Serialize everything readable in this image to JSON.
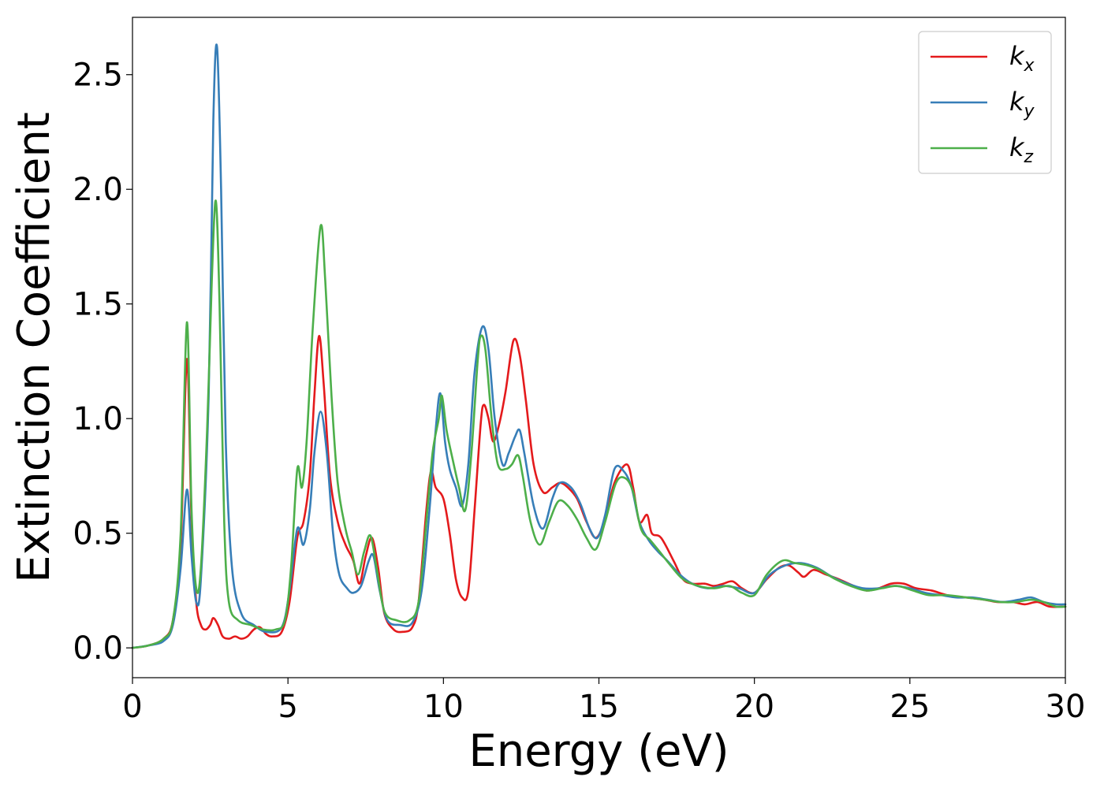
{
  "chart_data": {
    "type": "line",
    "xlabel": "Energy (eV)",
    "ylabel": "Extinction Coefficient",
    "xlim": [
      0,
      30
    ],
    "ylim": [
      -0.13,
      2.75
    ],
    "xticks": [
      0,
      5,
      10,
      15,
      20,
      25,
      30
    ],
    "xtick_labels": [
      "0",
      "5",
      "10",
      "15",
      "20",
      "25",
      "30"
    ],
    "yticks": [
      0.0,
      0.5,
      1.0,
      1.5,
      2.0,
      2.5
    ],
    "ytick_labels": [
      "0.0",
      "0.5",
      "1.0",
      "1.5",
      "2.0",
      "2.5"
    ],
    "grid": false,
    "legend_position": "top-right",
    "series": [
      {
        "name": "k_x",
        "label_main": "k",
        "label_sub": "x",
        "color": "#e41a1c",
        "points": [
          [
            0,
            0
          ],
          [
            0.5,
            0.01
          ],
          [
            1.0,
            0.04
          ],
          [
            1.3,
            0.12
          ],
          [
            1.55,
            0.45
          ],
          [
            1.75,
            1.26
          ],
          [
            1.9,
            0.55
          ],
          [
            2.05,
            0.2
          ],
          [
            2.2,
            0.1
          ],
          [
            2.35,
            0.08
          ],
          [
            2.5,
            0.1
          ],
          [
            2.6,
            0.13
          ],
          [
            2.75,
            0.1
          ],
          [
            2.9,
            0.05
          ],
          [
            3.1,
            0.04
          ],
          [
            3.3,
            0.05
          ],
          [
            3.5,
            0.04
          ],
          [
            3.7,
            0.05
          ],
          [
            3.9,
            0.08
          ],
          [
            4.1,
            0.09
          ],
          [
            4.3,
            0.06
          ],
          [
            4.5,
            0.05
          ],
          [
            4.8,
            0.07
          ],
          [
            5.05,
            0.2
          ],
          [
            5.3,
            0.48
          ],
          [
            5.5,
            0.55
          ],
          [
            5.7,
            0.75
          ],
          [
            5.85,
            1.1
          ],
          [
            6.0,
            1.36
          ],
          [
            6.15,
            1.15
          ],
          [
            6.35,
            0.75
          ],
          [
            6.6,
            0.55
          ],
          [
            6.85,
            0.45
          ],
          [
            7.1,
            0.38
          ],
          [
            7.3,
            0.28
          ],
          [
            7.5,
            0.4
          ],
          [
            7.7,
            0.48
          ],
          [
            7.9,
            0.35
          ],
          [
            8.1,
            0.15
          ],
          [
            8.4,
            0.08
          ],
          [
            8.7,
            0.07
          ],
          [
            9.0,
            0.09
          ],
          [
            9.2,
            0.2
          ],
          [
            9.45,
            0.6
          ],
          [
            9.6,
            0.77
          ],
          [
            9.75,
            0.7
          ],
          [
            10.0,
            0.65
          ],
          [
            10.2,
            0.5
          ],
          [
            10.4,
            0.3
          ],
          [
            10.6,
            0.22
          ],
          [
            10.8,
            0.25
          ],
          [
            11.0,
            0.6
          ],
          [
            11.2,
            0.98
          ],
          [
            11.3,
            1.06
          ],
          [
            11.45,
            1.0
          ],
          [
            11.6,
            0.9
          ],
          [
            11.8,
            0.98
          ],
          [
            12.0,
            1.12
          ],
          [
            12.25,
            1.34
          ],
          [
            12.45,
            1.28
          ],
          [
            12.65,
            1.08
          ],
          [
            12.9,
            0.8
          ],
          [
            13.2,
            0.68
          ],
          [
            13.5,
            0.7
          ],
          [
            13.75,
            0.72
          ],
          [
            14.0,
            0.7
          ],
          [
            14.3,
            0.65
          ],
          [
            14.6,
            0.55
          ],
          [
            14.9,
            0.48
          ],
          [
            15.2,
            0.56
          ],
          [
            15.5,
            0.72
          ],
          [
            15.9,
            0.8
          ],
          [
            16.1,
            0.7
          ],
          [
            16.3,
            0.55
          ],
          [
            16.55,
            0.58
          ],
          [
            16.7,
            0.5
          ],
          [
            17.0,
            0.48
          ],
          [
            17.4,
            0.38
          ],
          [
            17.7,
            0.3
          ],
          [
            18.0,
            0.28
          ],
          [
            18.4,
            0.28
          ],
          [
            18.7,
            0.27
          ],
          [
            19.0,
            0.28
          ],
          [
            19.3,
            0.29
          ],
          [
            19.6,
            0.26
          ],
          [
            20.0,
            0.24
          ],
          [
            20.4,
            0.3
          ],
          [
            20.8,
            0.35
          ],
          [
            21.1,
            0.36
          ],
          [
            21.4,
            0.33
          ],
          [
            21.6,
            0.31
          ],
          [
            21.9,
            0.34
          ],
          [
            22.3,
            0.32
          ],
          [
            22.7,
            0.3
          ],
          [
            23.2,
            0.27
          ],
          [
            23.6,
            0.25
          ],
          [
            24.0,
            0.26
          ],
          [
            24.4,
            0.28
          ],
          [
            24.8,
            0.28
          ],
          [
            25.2,
            0.26
          ],
          [
            25.7,
            0.25
          ],
          [
            26.2,
            0.23
          ],
          [
            26.8,
            0.22
          ],
          [
            27.4,
            0.21
          ],
          [
            27.8,
            0.2
          ],
          [
            28.3,
            0.2
          ],
          [
            28.7,
            0.19
          ],
          [
            29.1,
            0.2
          ],
          [
            29.5,
            0.18
          ],
          [
            30.0,
            0.18
          ]
        ]
      },
      {
        "name": "k_y",
        "label_main": "k",
        "label_sub": "y",
        "color": "#377eb8",
        "points": [
          [
            0,
            0
          ],
          [
            0.5,
            0.01
          ],
          [
            1.0,
            0.03
          ],
          [
            1.3,
            0.1
          ],
          [
            1.55,
            0.35
          ],
          [
            1.75,
            0.69
          ],
          [
            1.9,
            0.4
          ],
          [
            2.05,
            0.2
          ],
          [
            2.2,
            0.3
          ],
          [
            2.45,
            1.1
          ],
          [
            2.6,
            2.3
          ],
          [
            2.72,
            2.62
          ],
          [
            2.85,
            2.0
          ],
          [
            3.0,
            0.9
          ],
          [
            3.2,
            0.35
          ],
          [
            3.5,
            0.15
          ],
          [
            3.9,
            0.1
          ],
          [
            4.3,
            0.07
          ],
          [
            4.8,
            0.09
          ],
          [
            5.05,
            0.25
          ],
          [
            5.3,
            0.52
          ],
          [
            5.5,
            0.45
          ],
          [
            5.7,
            0.6
          ],
          [
            5.85,
            0.85
          ],
          [
            6.05,
            1.03
          ],
          [
            6.25,
            0.85
          ],
          [
            6.45,
            0.5
          ],
          [
            6.65,
            0.32
          ],
          [
            6.9,
            0.26
          ],
          [
            7.1,
            0.24
          ],
          [
            7.35,
            0.27
          ],
          [
            7.6,
            0.38
          ],
          [
            7.75,
            0.4
          ],
          [
            7.95,
            0.25
          ],
          [
            8.2,
            0.12
          ],
          [
            8.6,
            0.1
          ],
          [
            9.0,
            0.11
          ],
          [
            9.3,
            0.25
          ],
          [
            9.55,
            0.6
          ],
          [
            9.75,
            0.95
          ],
          [
            9.9,
            1.11
          ],
          [
            10.05,
            0.9
          ],
          [
            10.2,
            0.78
          ],
          [
            10.4,
            0.7
          ],
          [
            10.6,
            0.62
          ],
          [
            10.8,
            0.8
          ],
          [
            11.0,
            1.2
          ],
          [
            11.25,
            1.4
          ],
          [
            11.45,
            1.3
          ],
          [
            11.65,
            1.0
          ],
          [
            11.9,
            0.8
          ],
          [
            12.1,
            0.85
          ],
          [
            12.3,
            0.92
          ],
          [
            12.45,
            0.95
          ],
          [
            12.6,
            0.85
          ],
          [
            12.9,
            0.62
          ],
          [
            13.2,
            0.52
          ],
          [
            13.5,
            0.65
          ],
          [
            13.75,
            0.72
          ],
          [
            14.1,
            0.7
          ],
          [
            14.4,
            0.63
          ],
          [
            14.7,
            0.52
          ],
          [
            14.95,
            0.48
          ],
          [
            15.2,
            0.58
          ],
          [
            15.5,
            0.78
          ],
          [
            15.8,
            0.77
          ],
          [
            16.05,
            0.7
          ],
          [
            16.3,
            0.55
          ],
          [
            16.6,
            0.47
          ],
          [
            16.9,
            0.42
          ],
          [
            17.2,
            0.38
          ],
          [
            17.6,
            0.32
          ],
          [
            18.0,
            0.28
          ],
          [
            18.5,
            0.26
          ],
          [
            19.0,
            0.27
          ],
          [
            19.5,
            0.26
          ],
          [
            20.0,
            0.24
          ],
          [
            20.5,
            0.32
          ],
          [
            21.0,
            0.36
          ],
          [
            21.5,
            0.37
          ],
          [
            22.0,
            0.35
          ],
          [
            22.5,
            0.31
          ],
          [
            23.0,
            0.28
          ],
          [
            23.5,
            0.26
          ],
          [
            24.0,
            0.26
          ],
          [
            24.5,
            0.27
          ],
          [
            25.0,
            0.26
          ],
          [
            25.5,
            0.24
          ],
          [
            26.0,
            0.23
          ],
          [
            26.5,
            0.22
          ],
          [
            27.0,
            0.22
          ],
          [
            27.5,
            0.21
          ],
          [
            28.0,
            0.2
          ],
          [
            28.5,
            0.21
          ],
          [
            28.9,
            0.22
          ],
          [
            29.3,
            0.2
          ],
          [
            29.7,
            0.19
          ],
          [
            30.0,
            0.19
          ]
        ]
      },
      {
        "name": "k_z",
        "label_main": "k",
        "label_sub": "z",
        "color": "#4daf4a",
        "points": [
          [
            0,
            0
          ],
          [
            0.5,
            0.01
          ],
          [
            1.0,
            0.04
          ],
          [
            1.3,
            0.12
          ],
          [
            1.55,
            0.5
          ],
          [
            1.75,
            1.42
          ],
          [
            1.9,
            0.6
          ],
          [
            2.05,
            0.26
          ],
          [
            2.2,
            0.35
          ],
          [
            2.4,
            0.95
          ],
          [
            2.55,
            1.6
          ],
          [
            2.68,
            1.95
          ],
          [
            2.8,
            1.5
          ],
          [
            2.95,
            0.55
          ],
          [
            3.1,
            0.2
          ],
          [
            3.4,
            0.12
          ],
          [
            3.8,
            0.1
          ],
          [
            4.2,
            0.08
          ],
          [
            4.6,
            0.08
          ],
          [
            4.9,
            0.12
          ],
          [
            5.1,
            0.35
          ],
          [
            5.3,
            0.78
          ],
          [
            5.45,
            0.7
          ],
          [
            5.6,
            0.9
          ],
          [
            5.8,
            1.4
          ],
          [
            6.05,
            1.84
          ],
          [
            6.2,
            1.6
          ],
          [
            6.4,
            1.1
          ],
          [
            6.6,
            0.72
          ],
          [
            6.85,
            0.52
          ],
          [
            7.05,
            0.42
          ],
          [
            7.25,
            0.32
          ],
          [
            7.45,
            0.42
          ],
          [
            7.65,
            0.49
          ],
          [
            7.85,
            0.35
          ],
          [
            8.1,
            0.16
          ],
          [
            8.5,
            0.12
          ],
          [
            8.9,
            0.12
          ],
          [
            9.2,
            0.2
          ],
          [
            9.45,
            0.55
          ],
          [
            9.65,
            0.85
          ],
          [
            9.85,
            1.0
          ],
          [
            9.95,
            1.1
          ],
          [
            10.1,
            0.95
          ],
          [
            10.3,
            0.82
          ],
          [
            10.5,
            0.7
          ],
          [
            10.7,
            0.6
          ],
          [
            10.9,
            0.85
          ],
          [
            11.1,
            1.25
          ],
          [
            11.2,
            1.36
          ],
          [
            11.35,
            1.3
          ],
          [
            11.55,
            1.0
          ],
          [
            11.75,
            0.8
          ],
          [
            12.0,
            0.78
          ],
          [
            12.2,
            0.8
          ],
          [
            12.4,
            0.84
          ],
          [
            12.55,
            0.75
          ],
          [
            12.8,
            0.55
          ],
          [
            13.1,
            0.45
          ],
          [
            13.4,
            0.55
          ],
          [
            13.7,
            0.64
          ],
          [
            14.0,
            0.62
          ],
          [
            14.3,
            0.56
          ],
          [
            14.6,
            0.48
          ],
          [
            14.9,
            0.43
          ],
          [
            15.2,
            0.55
          ],
          [
            15.55,
            0.72
          ],
          [
            15.85,
            0.74
          ],
          [
            16.1,
            0.68
          ],
          [
            16.35,
            0.52
          ],
          [
            16.65,
            0.47
          ],
          [
            16.95,
            0.42
          ],
          [
            17.3,
            0.36
          ],
          [
            17.7,
            0.3
          ],
          [
            18.2,
            0.27
          ],
          [
            18.7,
            0.26
          ],
          [
            19.2,
            0.27
          ],
          [
            19.6,
            0.24
          ],
          [
            20.0,
            0.23
          ],
          [
            20.4,
            0.32
          ],
          [
            20.9,
            0.38
          ],
          [
            21.3,
            0.37
          ],
          [
            21.7,
            0.36
          ],
          [
            22.1,
            0.34
          ],
          [
            22.6,
            0.3
          ],
          [
            23.1,
            0.27
          ],
          [
            23.6,
            0.25
          ],
          [
            24.1,
            0.26
          ],
          [
            24.6,
            0.27
          ],
          [
            25.1,
            0.25
          ],
          [
            25.6,
            0.23
          ],
          [
            26.2,
            0.23
          ],
          [
            26.8,
            0.22
          ],
          [
            27.4,
            0.21
          ],
          [
            27.9,
            0.2
          ],
          [
            28.4,
            0.2
          ],
          [
            28.9,
            0.21
          ],
          [
            29.3,
            0.2
          ],
          [
            29.7,
            0.18
          ],
          [
            30.0,
            0.18
          ]
        ]
      }
    ]
  }
}
